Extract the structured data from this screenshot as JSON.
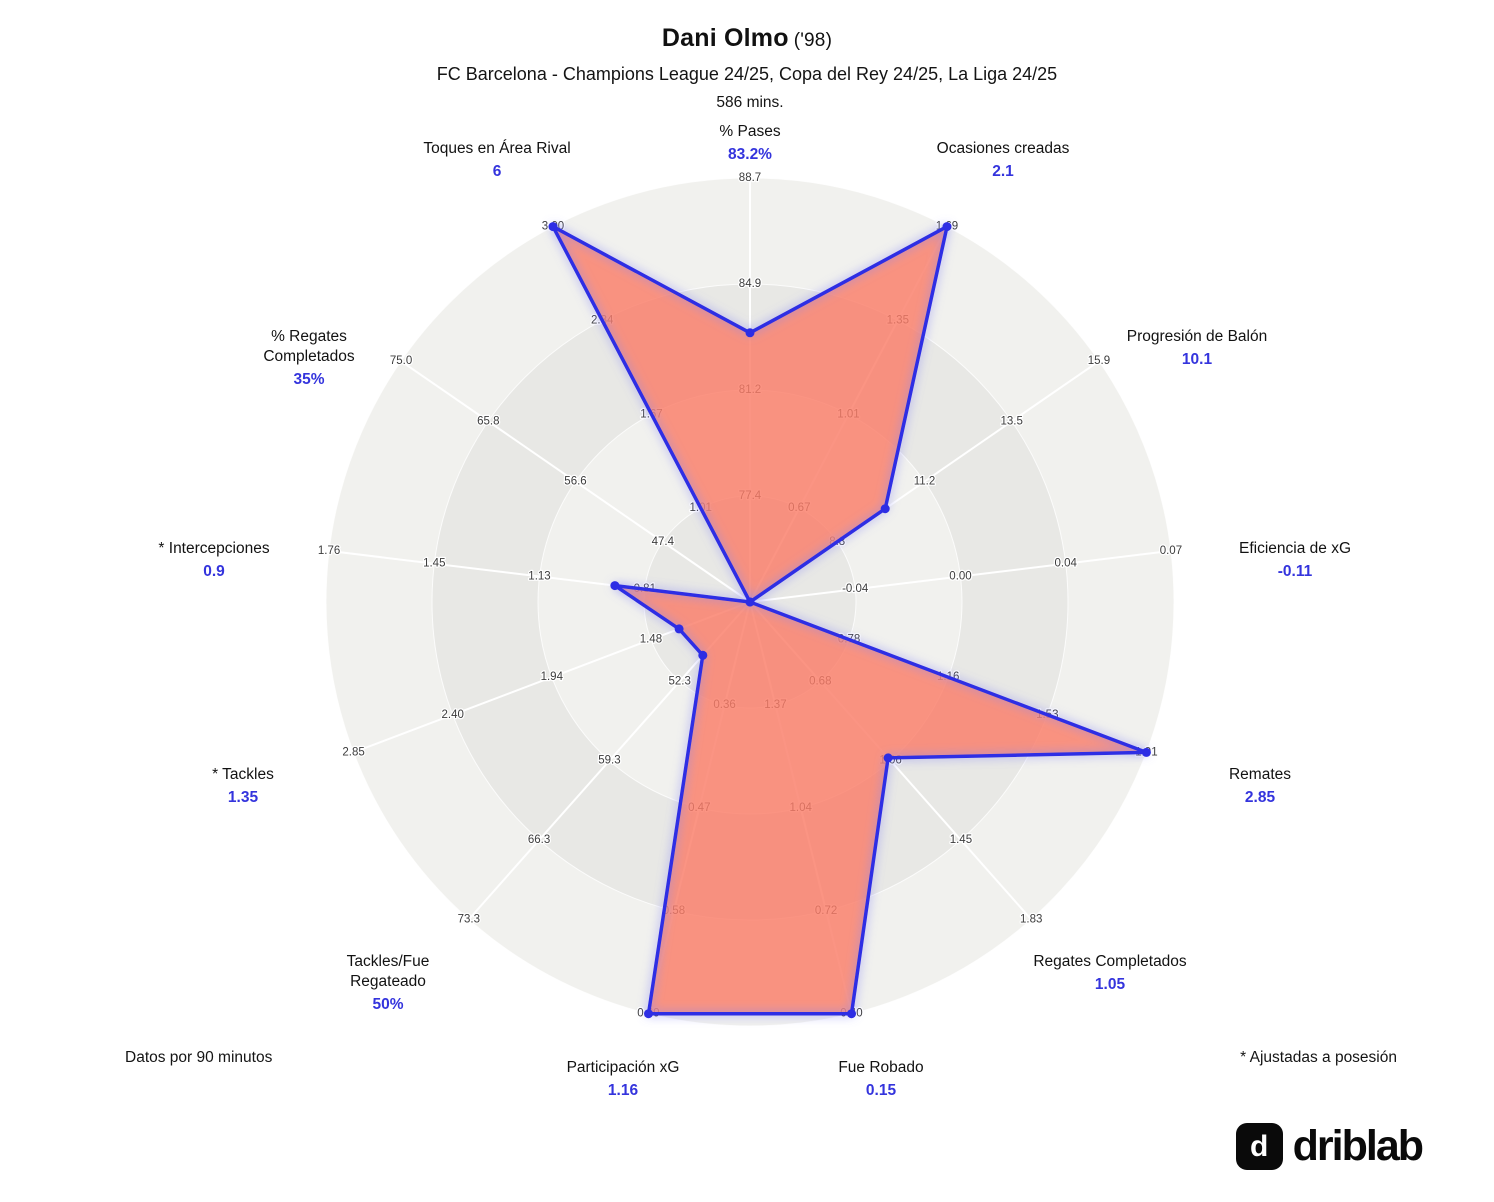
{
  "header": {
    "player_name": "Dani Olmo",
    "birth_year": "('98)",
    "subtitle": "FC Barcelona - Champions League 24/25, Copa del Rey 24/25, La Liga 24/25",
    "minutes": "586 mins."
  },
  "footnotes": {
    "left": "Datos por 90 minutos",
    "right": "* Ajustadas a posesión"
  },
  "logo": {
    "text": "driblab",
    "glyph": "d",
    "icon_name": "driblab-monogram-icon"
  },
  "colors": {
    "value_blue": "#3434dd",
    "polygon_stroke": "#2d2de4",
    "polygon_fill": "rgba(250,124,104,0.82)",
    "glow": "#8a8af5",
    "band_light": "#f1f1ee",
    "band_dark": "#e8e8e5",
    "tick_text": "#3c3c3c"
  },
  "chart_data": {
    "type": "radar",
    "rings": 4,
    "ring_radii": [
      106,
      212,
      318,
      424
    ],
    "axes": [
      {
        "id": "pct-pases",
        "label_lines": [
          "% Pases"
        ],
        "value_label": "83.2%",
        "value": 83.2,
        "ticks": [
          "77.4",
          "81.2",
          "84.9",
          "88.7"
        ]
      },
      {
        "id": "ocasiones-creadas",
        "label_lines": [
          "Ocasiones creadas"
        ],
        "value_label": "2.1",
        "value": 2.1,
        "ticks": [
          "0.67",
          "1.01",
          "1.35",
          "1.69"
        ]
      },
      {
        "id": "progresion-de-balon",
        "label_lines": [
          "Progresión de Balón"
        ],
        "value_label": "10.1",
        "value": 10.1,
        "ticks": [
          "8.8",
          "11.2",
          "13.5",
          "15.9"
        ]
      },
      {
        "id": "eficiencia-de-xg",
        "label_lines": [
          "Eficiencia de xG"
        ],
        "value_label": "-0.11",
        "value": -0.11,
        "ticks": [
          "-0.04",
          "0.00",
          "0.04",
          "0.07"
        ]
      },
      {
        "id": "remates",
        "label_lines": [
          "Remates"
        ],
        "value_label": "2.85",
        "value": 2.85,
        "ticks": [
          "0.78",
          "1.16",
          "1.53",
          "1.91"
        ]
      },
      {
        "id": "regates-completados",
        "label_lines": [
          "Regates Completados"
        ],
        "value_label": "1.05",
        "value": 1.05,
        "ticks": [
          "0.68",
          "1.06",
          "1.45",
          "1.83"
        ]
      },
      {
        "id": "fue-robado",
        "label_lines": [
          "Fue Robado"
        ],
        "value_label": "0.15",
        "value": 0.15,
        "ticks": [
          "1.37",
          "1.04",
          "0.72",
          "0.40"
        ]
      },
      {
        "id": "participacion-xg",
        "label_lines": [
          "Participación xG"
        ],
        "value_label": "1.16",
        "value": 1.16,
        "ticks": [
          "0.36",
          "0.47",
          "0.58",
          "0.69"
        ]
      },
      {
        "id": "tackles-fue-regateado",
        "label_lines": [
          "Tackles/Fue",
          "Regateado"
        ],
        "value_label": "50%",
        "value": 50,
        "ticks": [
          "52.3",
          "59.3",
          "66.3",
          "73.3"
        ]
      },
      {
        "id": "tackles",
        "label_lines": [
          "* Tackles"
        ],
        "value_label": "1.35",
        "value": 1.35,
        "ticks": [
          "1.48",
          "1.94",
          "2.40",
          "2.85"
        ]
      },
      {
        "id": "intercepciones",
        "label_lines": [
          "* Intercepciones"
        ],
        "value_label": "0.9",
        "value": 0.9,
        "ticks": [
          "0.81",
          "1.13",
          "1.45",
          "1.76"
        ]
      },
      {
        "id": "pct-regates-completados",
        "label_lines": [
          "% Regates",
          "Completados"
        ],
        "value_label": "35%",
        "value": 35,
        "ticks": [
          "47.4",
          "56.6",
          "65.8",
          "75.0"
        ]
      },
      {
        "id": "toques-en-area-rival",
        "label_lines": [
          "Toques en Área Rival"
        ],
        "value_label": "6",
        "value": 6,
        "ticks": [
          "1.01",
          "1.67",
          "2.34",
          "3.00"
        ]
      }
    ]
  }
}
